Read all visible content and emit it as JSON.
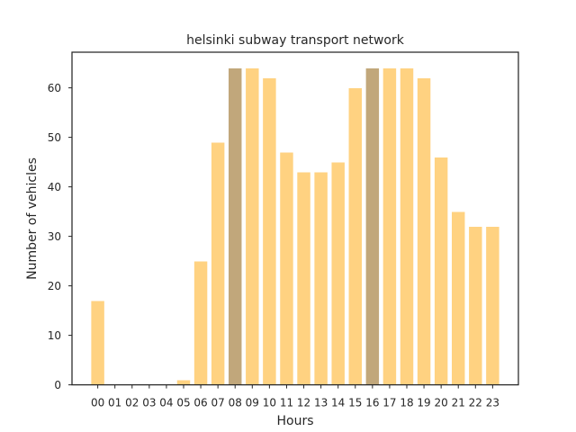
{
  "chart_data": {
    "type": "bar",
    "title": "helsinki subway transport network",
    "xlabel": "Hours",
    "ylabel": "Number of vehicles",
    "categories": [
      "00",
      "01",
      "02",
      "03",
      "04",
      "05",
      "06",
      "07",
      "08",
      "09",
      "10",
      "11",
      "12",
      "13",
      "14",
      "15",
      "16",
      "17",
      "18",
      "19",
      "20",
      "21",
      "22",
      "23"
    ],
    "values": [
      17,
      0,
      0,
      0,
      0,
      1,
      25,
      49,
      64,
      64,
      62,
      47,
      43,
      43,
      45,
      60,
      64,
      64,
      64,
      62,
      46,
      35,
      32,
      32
    ],
    "highlighted": [
      "08",
      "16"
    ],
    "ylim": [
      0,
      67.2
    ],
    "yticks": [
      0,
      10,
      20,
      30,
      40,
      50,
      60
    ],
    "grid": false,
    "colors": {
      "bar": "#ffd281",
      "highlight": "#c1a77b",
      "axis": "#262626"
    }
  }
}
